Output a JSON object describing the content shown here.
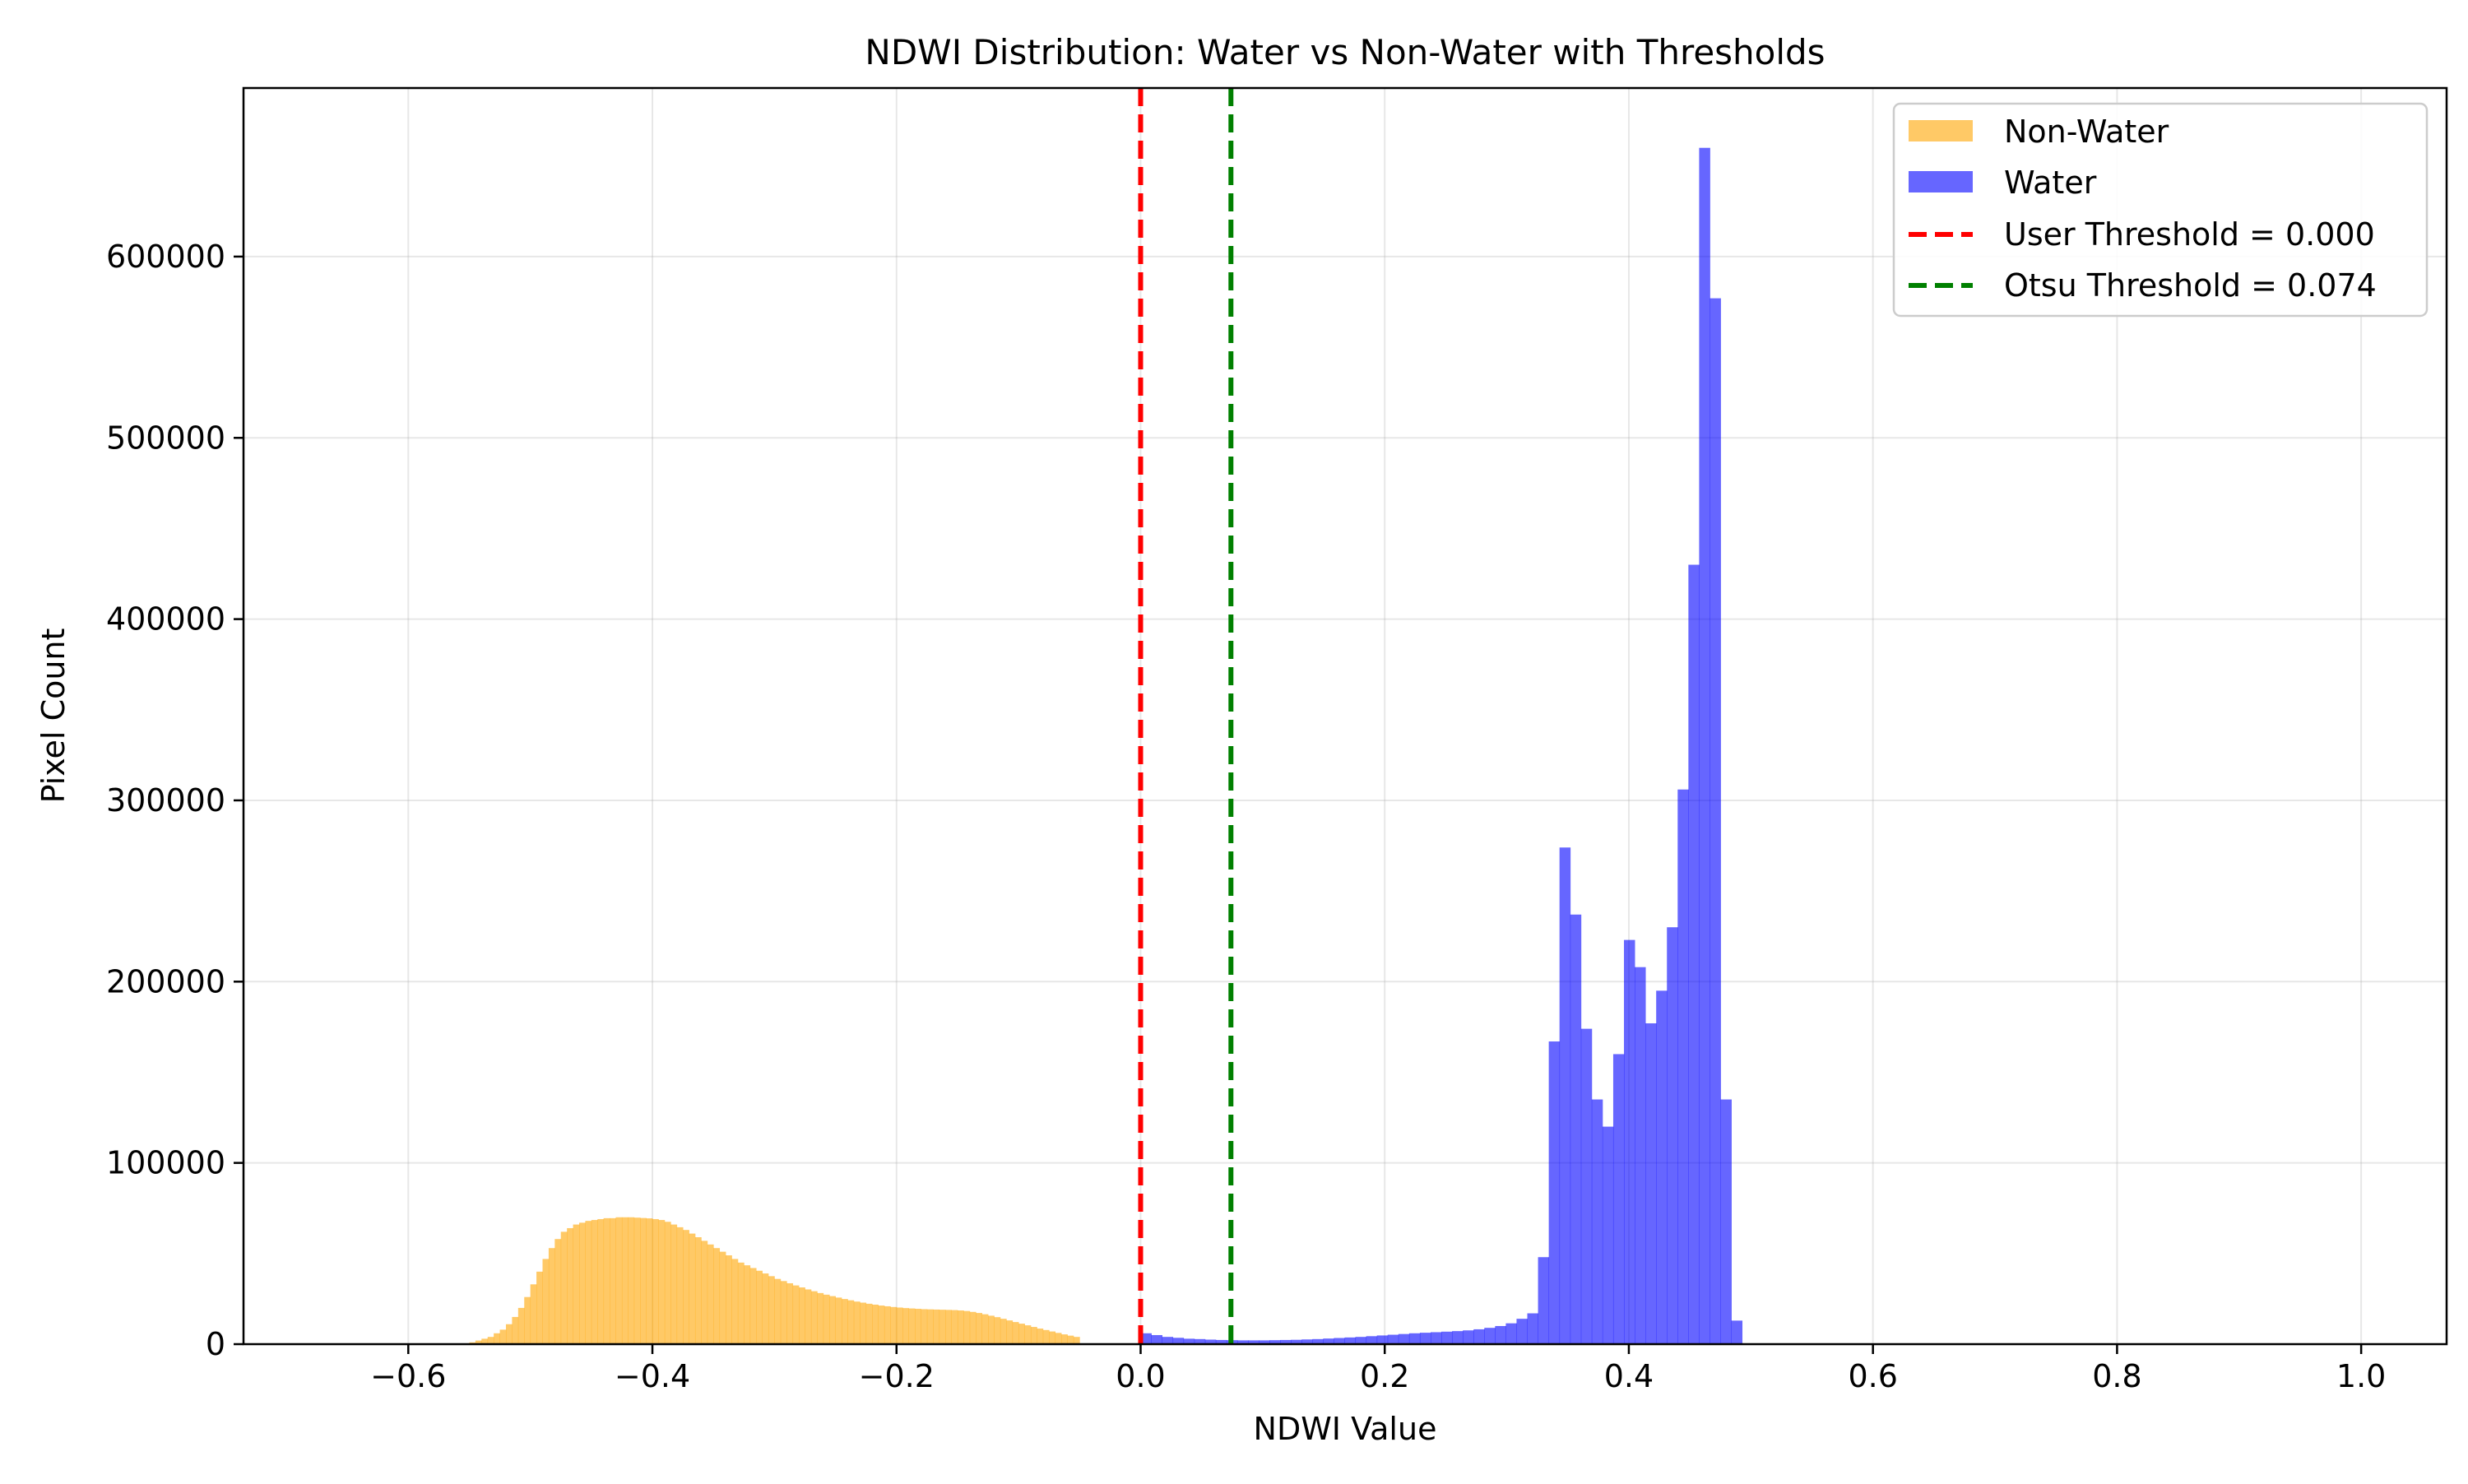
{
  "chart_data": {
    "type": "bar",
    "title": "NDWI Distribution: Water vs Non-Water with Thresholds",
    "xlabel": "NDWI Value",
    "ylabel": "Pixel Count",
    "xlim": [
      -0.735,
      1.07
    ],
    "ylim": [
      0,
      693000
    ],
    "xticks": [
      -0.6,
      -0.4,
      -0.2,
      0.0,
      0.2,
      0.4,
      0.6,
      0.8,
      1.0
    ],
    "xtick_labels": [
      "−0.6",
      "−0.4",
      "−0.2",
      "0.0",
      "0.2",
      "0.4",
      "0.6",
      "0.8",
      "1.0"
    ],
    "yticks": [
      0,
      100000,
      200000,
      300000,
      400000,
      500000,
      600000
    ],
    "ytick_labels": [
      "0",
      "100000",
      "200000",
      "300000",
      "400000",
      "500000",
      "600000"
    ],
    "grid": true,
    "legend_position": "top-right",
    "series": [
      {
        "name": "Non-Water",
        "color": "#ffa500",
        "opacity": 0.6,
        "bin_width": 0.005,
        "x_start": -0.6,
        "values": [
          0,
          0,
          0,
          0,
          0,
          0,
          0,
          0,
          0,
          0,
          1000,
          2000,
          3000,
          4000,
          6000,
          8000,
          11000,
          15000,
          20000,
          26000,
          33000,
          40000,
          47000,
          53000,
          58000,
          62000,
          64000,
          66000,
          67000,
          68000,
          68500,
          69000,
          69500,
          69500,
          70000,
          70000,
          70000,
          69800,
          69600,
          69400,
          69000,
          68500,
          67500,
          66000,
          64500,
          63000,
          61000,
          59000,
          57000,
          55000,
          53000,
          51000,
          49000,
          47000,
          45000,
          43500,
          42000,
          40500,
          39000,
          37500,
          36000,
          34800,
          33600,
          32400,
          31300,
          30200,
          29200,
          28200,
          27300,
          26500,
          25700,
          24900,
          24200,
          23500,
          22900,
          22300,
          21800,
          21300,
          20900,
          20500,
          20200,
          19900,
          19700,
          19500,
          19300,
          19200,
          19100,
          19000,
          18900,
          18800,
          18600,
          18300,
          17800,
          17200,
          16500,
          15700,
          14900,
          14000,
          13100,
          12200,
          11300,
          10400,
          9500,
          8600,
          7800,
          7000,
          6200,
          5400,
          4700,
          4000
        ]
      },
      {
        "name": "Water",
        "color": "#0000ff",
        "opacity": 0.6,
        "bin_width": 0.0088,
        "x_start": 0.0,
        "values": [
          6000,
          5000,
          4000,
          3500,
          3000,
          2800,
          2500,
          2300,
          2200,
          2100,
          2100,
          2100,
          2200,
          2300,
          2400,
          2600,
          2800,
          3100,
          3400,
          3700,
          4000,
          4400,
          4800,
          5200,
          5600,
          6000,
          6300,
          6600,
          6900,
          7200,
          7600,
          8200,
          9000,
          10000,
          11500,
          14000,
          17000,
          48000,
          167000,
          274000,
          237000,
          174000,
          135000,
          120000,
          160000,
          223000,
          208000,
          177000,
          195000,
          230000,
          306000,
          430000,
          660000,
          577000,
          135000,
          13000
        ]
      }
    ],
    "threshold_lines": [
      {
        "name": "User Threshold = 0.000",
        "x": 0.0,
        "color": "#ff0000",
        "style": "dashed"
      },
      {
        "name": "Otsu Threshold = 0.074",
        "x": 0.074,
        "color": "#008000",
        "style": "dashed"
      }
    ]
  }
}
